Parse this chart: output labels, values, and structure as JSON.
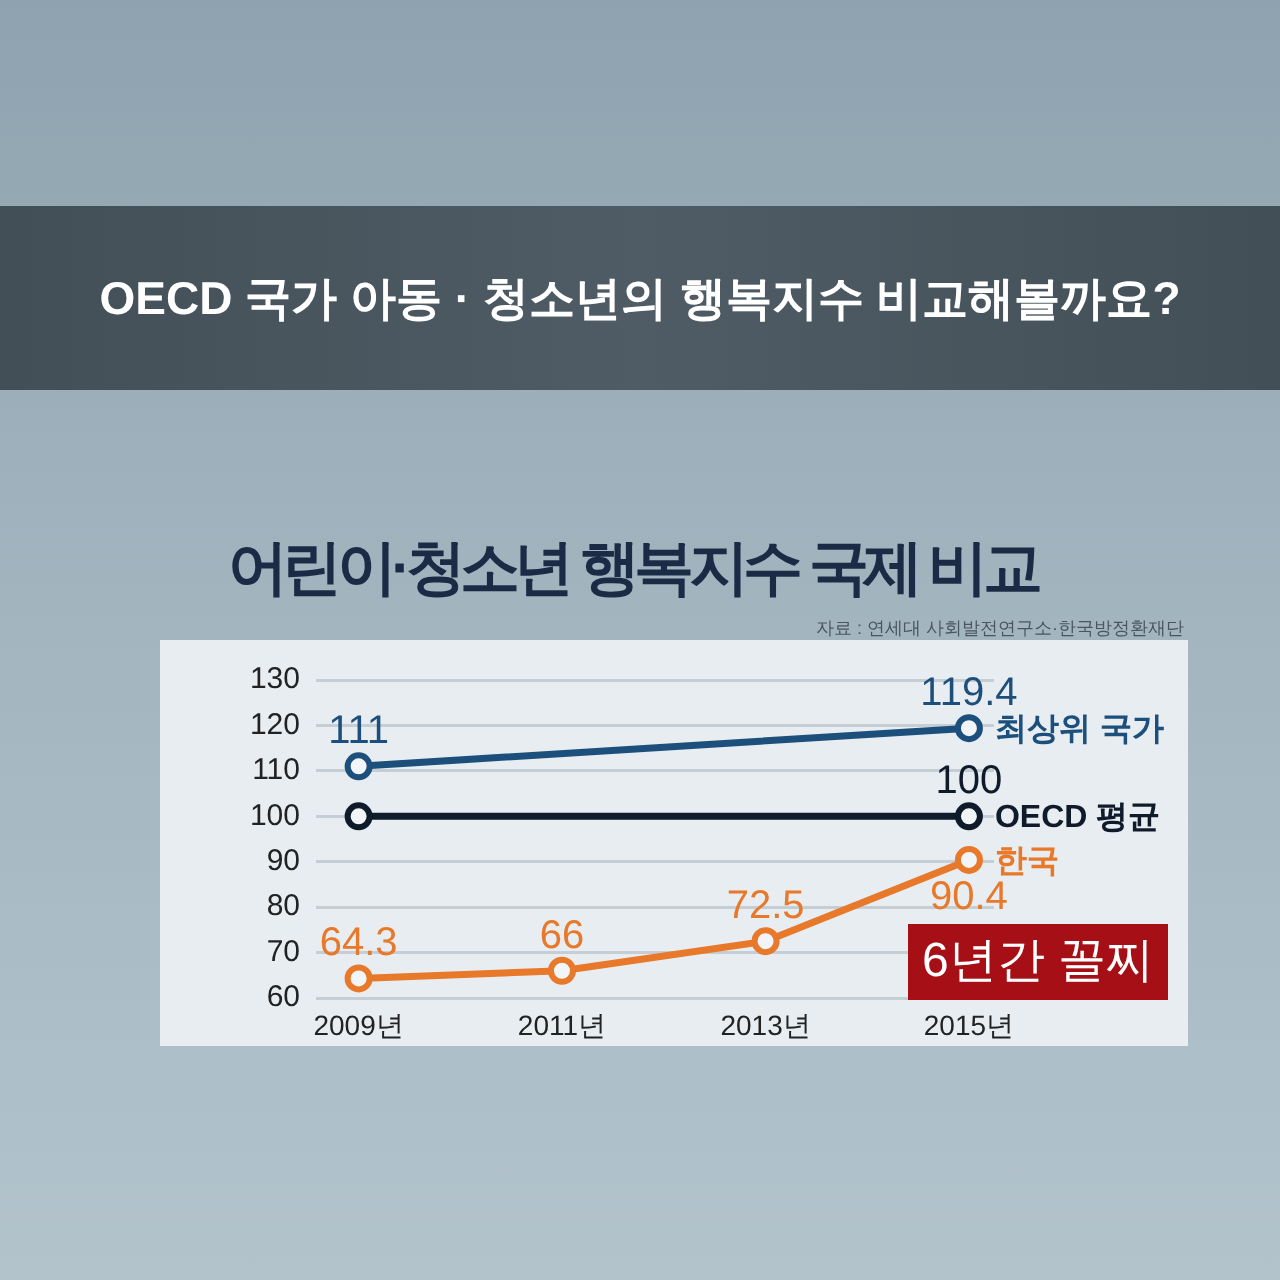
{
  "chart_data": {
    "type": "line",
    "title": "OECD 국가 아동 · 청소년의 행복지수 비교해볼까요?",
    "subtitle": "어린이·청소년 행복지수 국제 비교",
    "annotations": [
      "자료 : 연세대 사회발전연구소·한국방정환재단",
      "6년간 꼴찌"
    ],
    "x": [
      "2009",
      "2011",
      "2013",
      "2015"
    ],
    "xlim": [
      "2008-08",
      "2015-04"
    ],
    "xticks": [
      {
        "value": "2009",
        "label": "2009년"
      },
      {
        "value": "2011",
        "label": "2011년"
      },
      {
        "value": "2013",
        "label": "2013년"
      },
      {
        "value": "2015",
        "label": "2015년"
      }
    ],
    "ylim": [
      60,
      130
    ],
    "yticks": [
      60,
      70,
      80,
      90,
      100,
      110,
      120,
      130
    ],
    "series": [
      {
        "name": "최상위 국가",
        "color": "#1d4f7c",
        "x": [
          "2009",
          "2015"
        ],
        "values": [
          111,
          119.4
        ],
        "value_labels": [
          "111",
          "119.4"
        ]
      },
      {
        "name": "OECD 평균",
        "color": "#0f1a2b",
        "x": [
          "2009",
          "2015"
        ],
        "values": [
          100,
          100
        ],
        "value_labels": [
          null,
          "100"
        ]
      },
      {
        "name": "한국",
        "color": "#e8782a",
        "values": [
          64.3,
          66,
          72.5,
          90.4
        ],
        "value_labels": [
          "64.3",
          "66",
          "72.5",
          "90.4"
        ]
      }
    ],
    "grid": "y",
    "marker": "circle",
    "line_style": "solid"
  }
}
